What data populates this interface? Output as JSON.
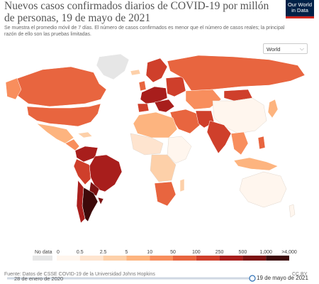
{
  "header": {
    "title": "Nuevos casos confirmados diarios de COVID-19 por millón de personas, 19 de mayo de 2021",
    "subtitle": "Se muestra el promedio móvil de 7 días. El número de casos confirmados es menor que el número de casos reales; la principal razón de ello son las pruebas limitadas.",
    "logo_line1": "Our World",
    "logo_line2": "in Data"
  },
  "controls": {
    "region_selected": "World"
  },
  "legend": {
    "no_data": "No data",
    "ticks": [
      "0",
      "0.5",
      "2.5",
      "5",
      "10",
      "50",
      "100",
      "250",
      "500",
      "1,000",
      ">4,000"
    ],
    "colors": [
      "#fff6ee",
      "#fee4cf",
      "#fdd0a9",
      "#fdb47f",
      "#f88e5d",
      "#e8653f",
      "#cf3f2b",
      "#a81e1c",
      "#7c1212",
      "#3d0a0a"
    ],
    "no_data_color": "#e6e6e6"
  },
  "footer": {
    "source": "Fuente: Datos de CSSE COVID-19 de la Universidad Johns Hopkins",
    "license": "CC BY",
    "date_start": "28 de enero de 2020",
    "date_end": "19 de mayo de 2021"
  }
}
